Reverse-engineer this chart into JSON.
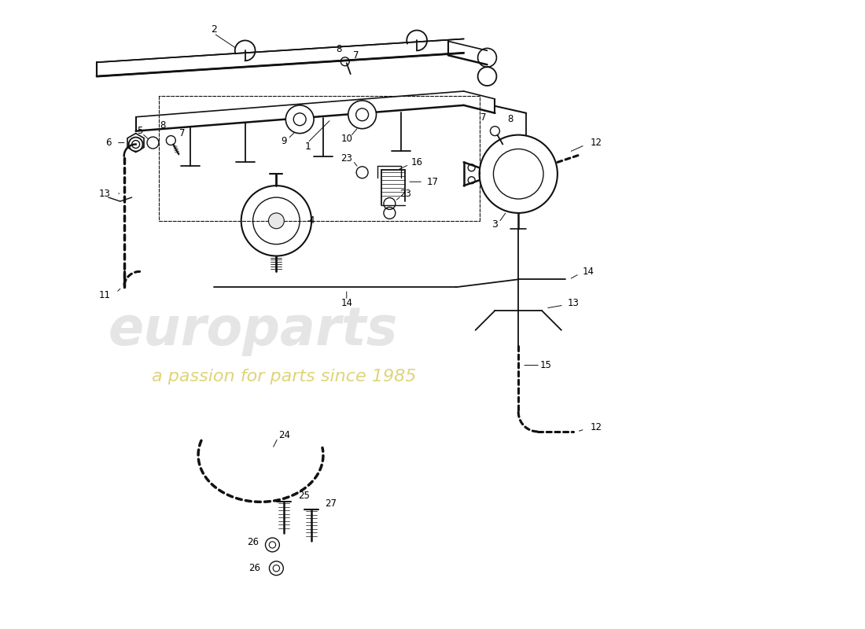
{
  "background_color": "#ffffff",
  "line_color": "#111111",
  "watermark_main": "europarts",
  "watermark_sub": "a passion for parts since 1985",
  "wm_main_color": "#c8c8c8",
  "wm_sub_color": "#c8b820",
  "figsize": [
    11.0,
    8.0
  ],
  "dpi": 100
}
